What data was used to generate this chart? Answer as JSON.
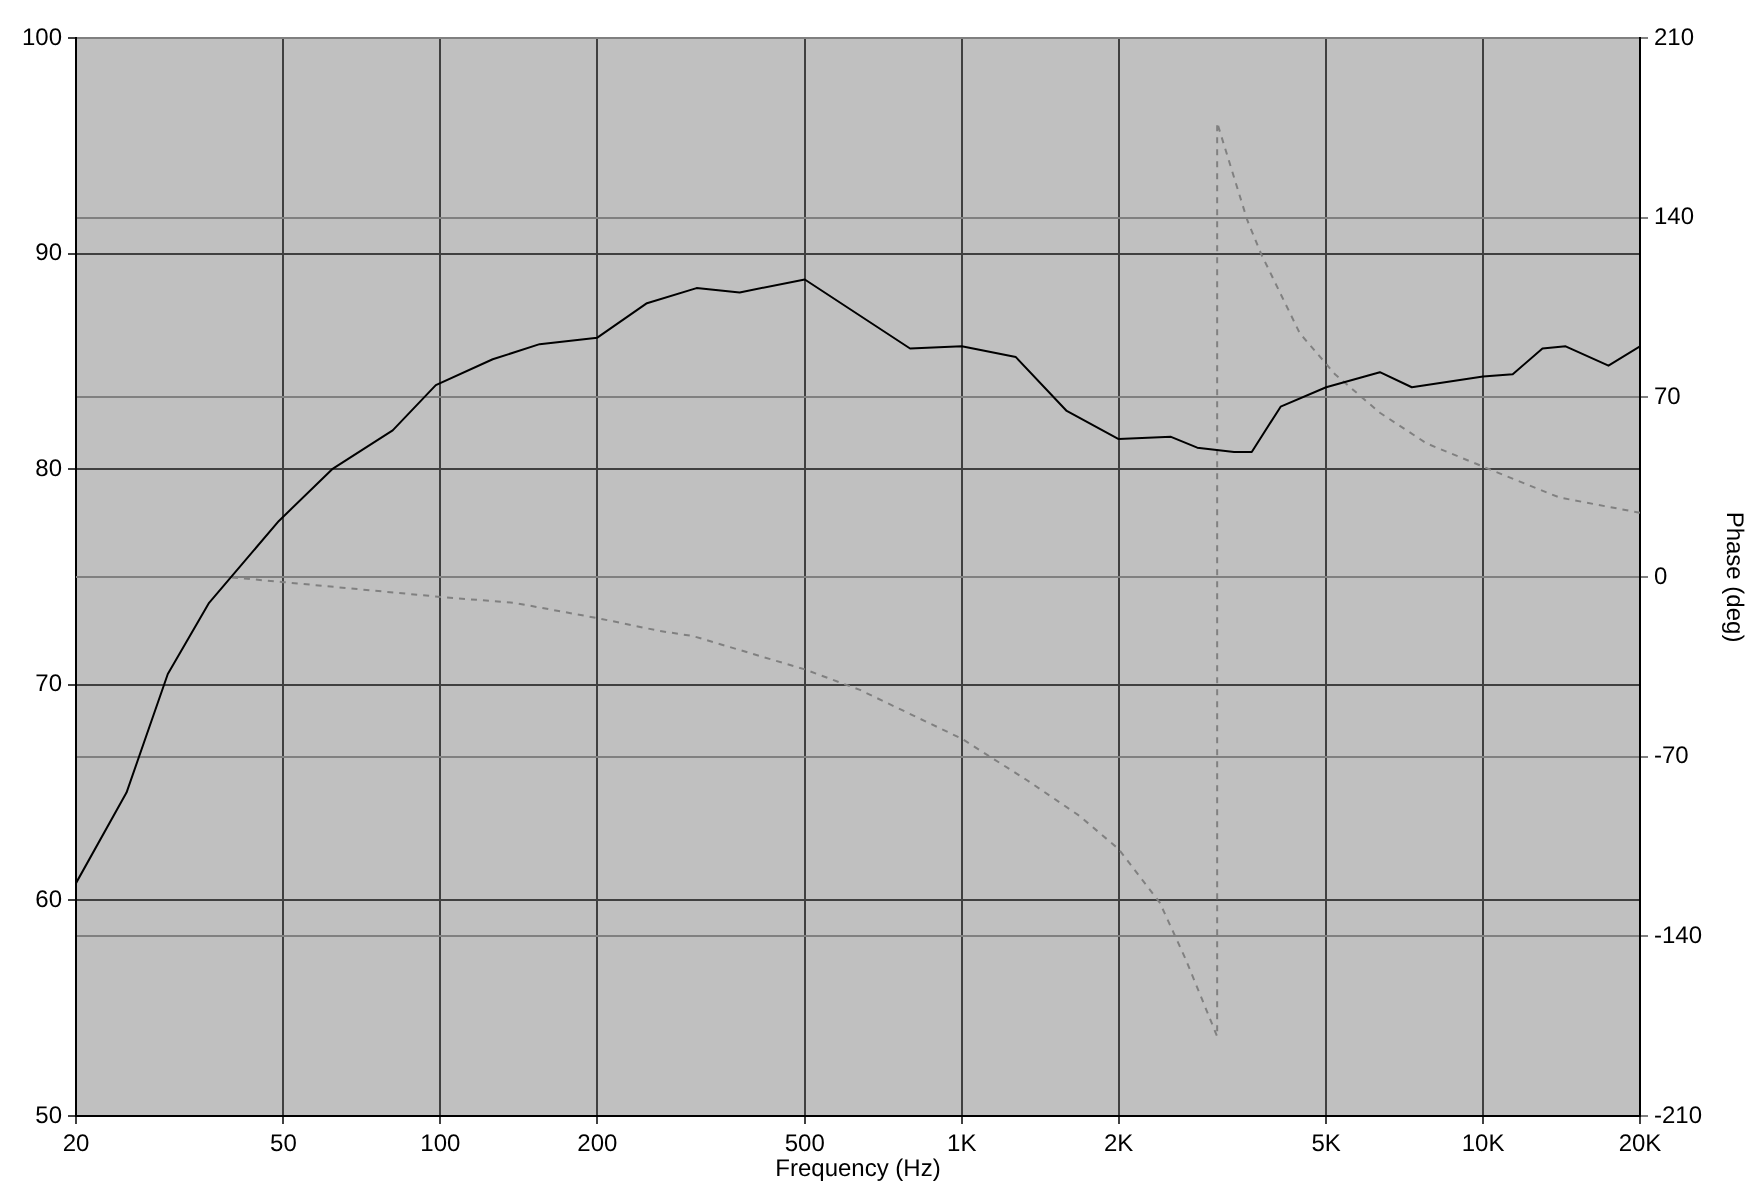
{
  "chart_data": {
    "type": "line",
    "xlabel": "Frequency (Hz)",
    "y2label": "Phase (deg)",
    "log": "x",
    "grid": true,
    "legend": false,
    "marker": "none",
    "xlim": [
      20,
      20000
    ],
    "xticks": [
      20,
      50,
      100,
      200,
      500,
      {
        "value": 1000,
        "label": "1K"
      },
      {
        "value": 2000,
        "label": "2K"
      },
      {
        "value": 5000,
        "label": "5K"
      },
      {
        "value": 10000,
        "label": "10K"
      },
      {
        "value": 20000,
        "label": "20K"
      }
    ],
    "ylim": [
      50,
      100
    ],
    "yticks": [
      50,
      60,
      70,
      80,
      90,
      100
    ],
    "y2lim": [
      -210,
      210
    ],
    "y2ticks": [
      -210,
      -140,
      -70,
      0,
      70,
      140,
      210
    ],
    "series": [
      {
        "color": "#000000",
        "line_style": "solid",
        "x": [
          20,
          25,
          30,
          36,
          49,
          62,
          81,
          98,
          126,
          155,
          200,
          249,
          310,
          375,
          500,
          796,
          1000,
          1270,
          1590,
          2000,
          2520,
          2830,
          3330,
          3600,
          4090,
          5000,
          6340,
          7300,
          10000,
          11400,
          13000,
          14400,
          17400,
          20000
        ],
        "values": [
          60.8,
          65.0,
          70.5,
          73.8,
          77.6,
          80.0,
          81.8,
          83.9,
          85.1,
          85.8,
          86.1,
          87.7,
          88.4,
          88.2,
          88.8,
          85.6,
          85.7,
          85.2,
          82.7,
          81.4,
          81.5,
          81.0,
          80.8,
          80.8,
          82.9,
          83.8,
          84.5,
          83.8,
          84.3,
          84.4,
          85.6,
          85.7,
          84.8,
          85.7
        ]
      },
      {
        "color": "#808080",
        "line_style": "dashed",
        "axis": "y2",
        "x": [
          20,
          39,
          50,
          103,
          138,
          200,
          263,
          305,
          500,
          638,
          808,
          1000,
          1330,
          1680,
          2000,
          2400,
          2690,
          3090,
          3090,
          3530,
          3750,
          4450,
          5200,
          6340,
          7800,
          10000,
          14000,
          20000
        ],
        "values": [
          0,
          0,
          -2,
          -8,
          -10,
          -16,
          -21,
          -23,
          -36,
          -44,
          -54,
          -63,
          -79,
          -93,
          -106,
          -127,
          -149,
          -179,
          177,
          139,
          126,
          95,
          79,
          64,
          52,
          43,
          31,
          25
        ]
      }
    ]
  }
}
